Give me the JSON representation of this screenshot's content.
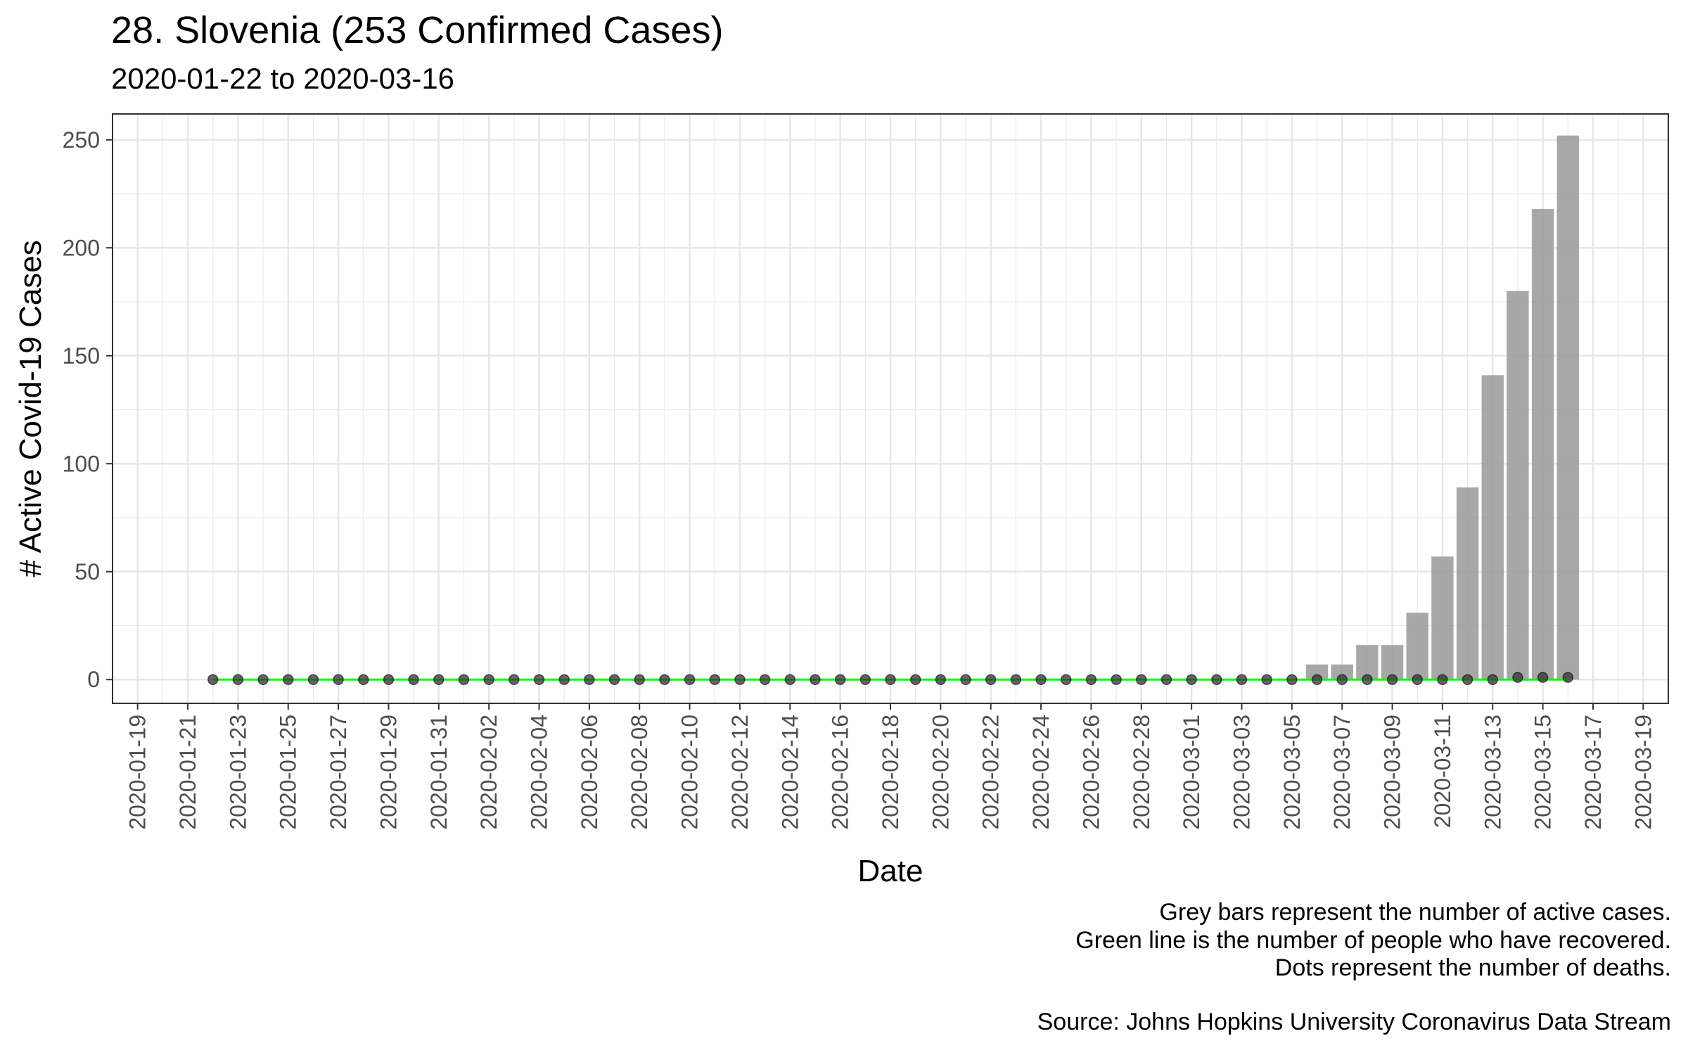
{
  "header": {
    "title": "28. Slovenia (253 Confirmed Cases)",
    "subtitle": "2020-01-22 to 2020-03-16"
  },
  "caption": {
    "lines": [
      "Grey bars represent the number of active cases.",
      "Green line is the number of people who have recovered.",
      "Dots represent the number of deaths."
    ],
    "source": "Source: Johns Hopkins University Coronavirus Data Stream"
  },
  "chart_data": {
    "type": "bar",
    "xlabel": "Date",
    "ylabel": "# Active Covid-19 Cases",
    "ylim": [
      -11,
      262
    ],
    "xlim": [
      "2020-01-18",
      "2020-03-20"
    ],
    "y_ticks": [
      0,
      50,
      100,
      150,
      200,
      250
    ],
    "x_ticks": [
      "2020-01-19",
      "2020-01-21",
      "2020-01-23",
      "2020-01-25",
      "2020-01-27",
      "2020-01-29",
      "2020-01-31",
      "2020-02-02",
      "2020-02-04",
      "2020-02-06",
      "2020-02-08",
      "2020-02-10",
      "2020-02-12",
      "2020-02-14",
      "2020-02-16",
      "2020-02-18",
      "2020-02-20",
      "2020-02-22",
      "2020-02-24",
      "2020-02-26",
      "2020-02-28",
      "2020-03-01",
      "2020-03-03",
      "2020-03-05",
      "2020-03-07",
      "2020-03-09",
      "2020-03-11",
      "2020-03-13",
      "2020-03-15",
      "2020-03-17",
      "2020-03-19"
    ],
    "grid": true,
    "legend": "none",
    "series": [
      {
        "name": "Active cases",
        "mark": "bar",
        "color": "#999999",
        "points": [
          {
            "x": "2020-03-05",
            "y": 0
          },
          {
            "x": "2020-03-06",
            "y": 7
          },
          {
            "x": "2020-03-07",
            "y": 7
          },
          {
            "x": "2020-03-08",
            "y": 16
          },
          {
            "x": "2020-03-09",
            "y": 16
          },
          {
            "x": "2020-03-10",
            "y": 31
          },
          {
            "x": "2020-03-11",
            "y": 57
          },
          {
            "x": "2020-03-12",
            "y": 89
          },
          {
            "x": "2020-03-13",
            "y": 141
          },
          {
            "x": "2020-03-14",
            "y": 180
          },
          {
            "x": "2020-03-15",
            "y": 218
          },
          {
            "x": "2020-03-16",
            "y": 252
          }
        ]
      },
      {
        "name": "Recovered",
        "mark": "line",
        "color": "#00ff00",
        "from": "2020-01-22",
        "to": "2020-03-16",
        "y": 0
      },
      {
        "name": "Deaths",
        "mark": "point",
        "color": "#333333",
        "from": "2020-01-22",
        "to": "2020-03-16",
        "default_y": 0,
        "overrides": [
          {
            "x": "2020-03-14",
            "y": 1
          },
          {
            "x": "2020-03-15",
            "y": 1
          },
          {
            "x": "2020-03-16",
            "y": 1
          }
        ]
      }
    ]
  }
}
